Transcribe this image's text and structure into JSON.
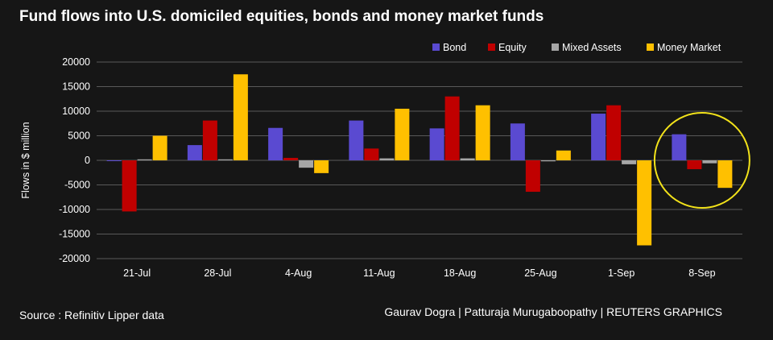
{
  "title": "Fund flows into U.S. domiciled equities, bonds and money market funds",
  "source": "Source : Refinitiv Lipper data",
  "credit": "Gaurav Dogra | Patturaja Murugaboopathy | REUTERS GRAPHICS",
  "highlight_category": "8-Sep",
  "highlight_color": "#f2e21a",
  "chart_data": {
    "type": "bar",
    "categories": [
      "21-Jul",
      "28-Jul",
      "4-Aug",
      "11-Aug",
      "18-Aug",
      "25-Aug",
      "1-Sep",
      "8-Sep"
    ],
    "series": [
      {
        "name": "Bond",
        "color": "#5a4ad1",
        "values": [
          -100,
          3100,
          6600,
          8100,
          6500,
          7500,
          9500,
          5300
        ]
      },
      {
        "name": "Equity",
        "color": "#c00000",
        "values": [
          -10400,
          8100,
          500,
          2400,
          13000,
          -6400,
          11200,
          -1800
        ]
      },
      {
        "name": "Mixed Assets",
        "color": "#a6a6a6",
        "values": [
          200,
          200,
          -1500,
          400,
          400,
          -200,
          -800,
          -600
        ]
      },
      {
        "name": "Money Market",
        "color": "#ffc000",
        "values": [
          5000,
          17500,
          -2600,
          10500,
          11200,
          2000,
          -17300,
          -5600
        ]
      }
    ],
    "ylabel": "Flows in $ million",
    "xlabel": "",
    "ylim": [
      -20000,
      20000
    ],
    "yticks": [
      -20000,
      -15000,
      -10000,
      -5000,
      0,
      5000,
      10000,
      15000,
      20000
    ],
    "grid": true,
    "legend_position": "top-right"
  }
}
